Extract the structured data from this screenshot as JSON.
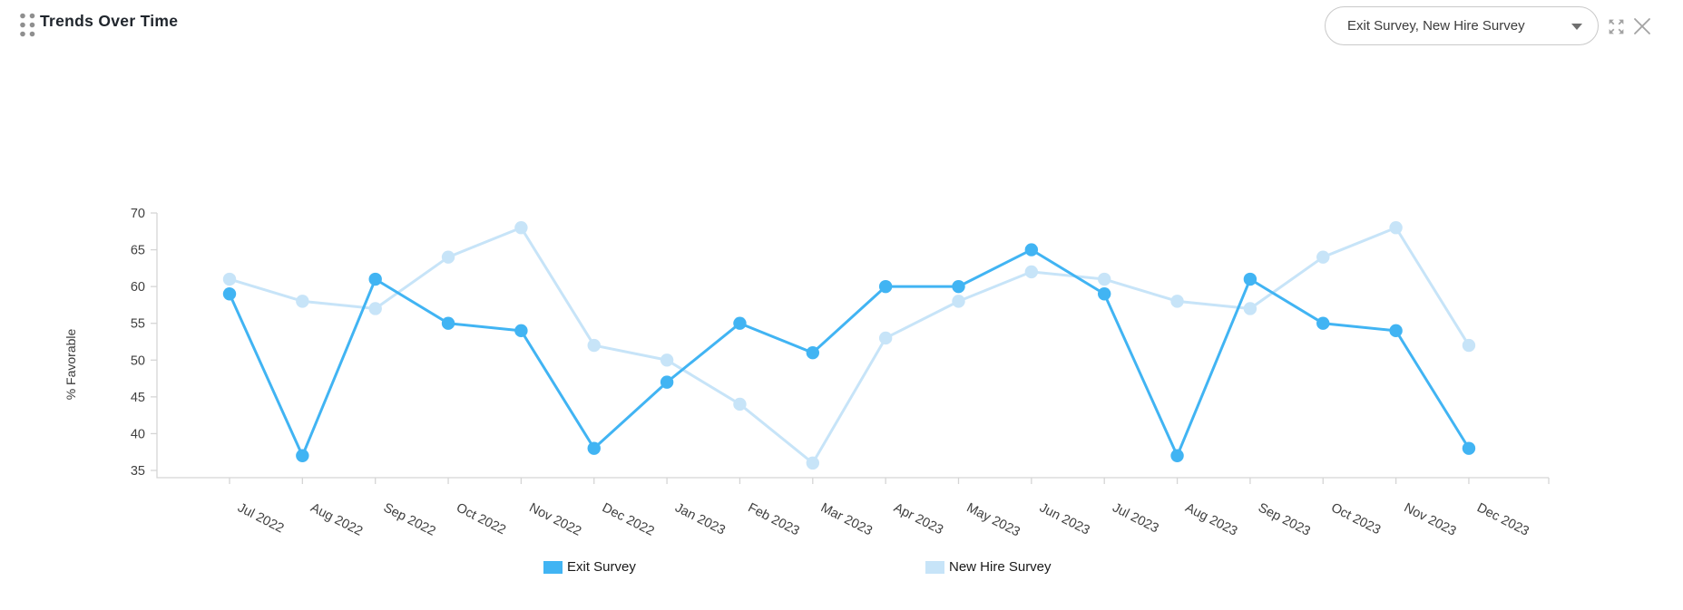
{
  "header": {
    "title": "Trends Over Time",
    "filter_value": "Exit Survey, New Hire Survey"
  },
  "icons": {
    "drag_handle": "drag-handle-icon",
    "dropdown_caret": "caret-down-icon",
    "expand": "expand-icon",
    "close": "close-icon"
  },
  "colors": {
    "exit_survey": "#41B4F3",
    "new_hire_survey": "#C7E4F8",
    "axis": "#D5D5D5",
    "tick_text": "#404040",
    "ylabel_text": "#3a3a3a"
  },
  "chart_data": {
    "type": "line",
    "title": "Trends Over Time",
    "xlabel": "",
    "ylabel": "% Favorable",
    "ylim": [
      34,
      70
    ],
    "yticks": [
      35,
      40,
      45,
      50,
      55,
      60,
      65,
      70
    ],
    "grid": false,
    "legend_position": "bottom",
    "categories": [
      "Jul 2022",
      "Aug 2022",
      "Sep 2022",
      "Oct 2022",
      "Nov 2022",
      "Dec 2022",
      "Jan 2023",
      "Feb 2023",
      "Mar 2023",
      "Apr 2023",
      "May 2023",
      "Jun 2023",
      "Jul 2023",
      "Aug 2023",
      "Sep 2023",
      "Oct 2023",
      "Nov 2023",
      "Dec 2023"
    ],
    "series": [
      {
        "name": "Exit Survey",
        "color": "#41B4F3",
        "values": [
          59,
          37,
          61,
          55,
          54,
          38,
          47,
          55,
          51,
          60,
          60,
          65,
          59,
          37,
          61,
          55,
          54,
          38
        ]
      },
      {
        "name": "New Hire Survey",
        "color": "#C7E4F8",
        "values": [
          61,
          58,
          57,
          64,
          68,
          52,
          50,
          44,
          36,
          53,
          58,
          62,
          61,
          58,
          57,
          64,
          68,
          52
        ]
      }
    ]
  }
}
